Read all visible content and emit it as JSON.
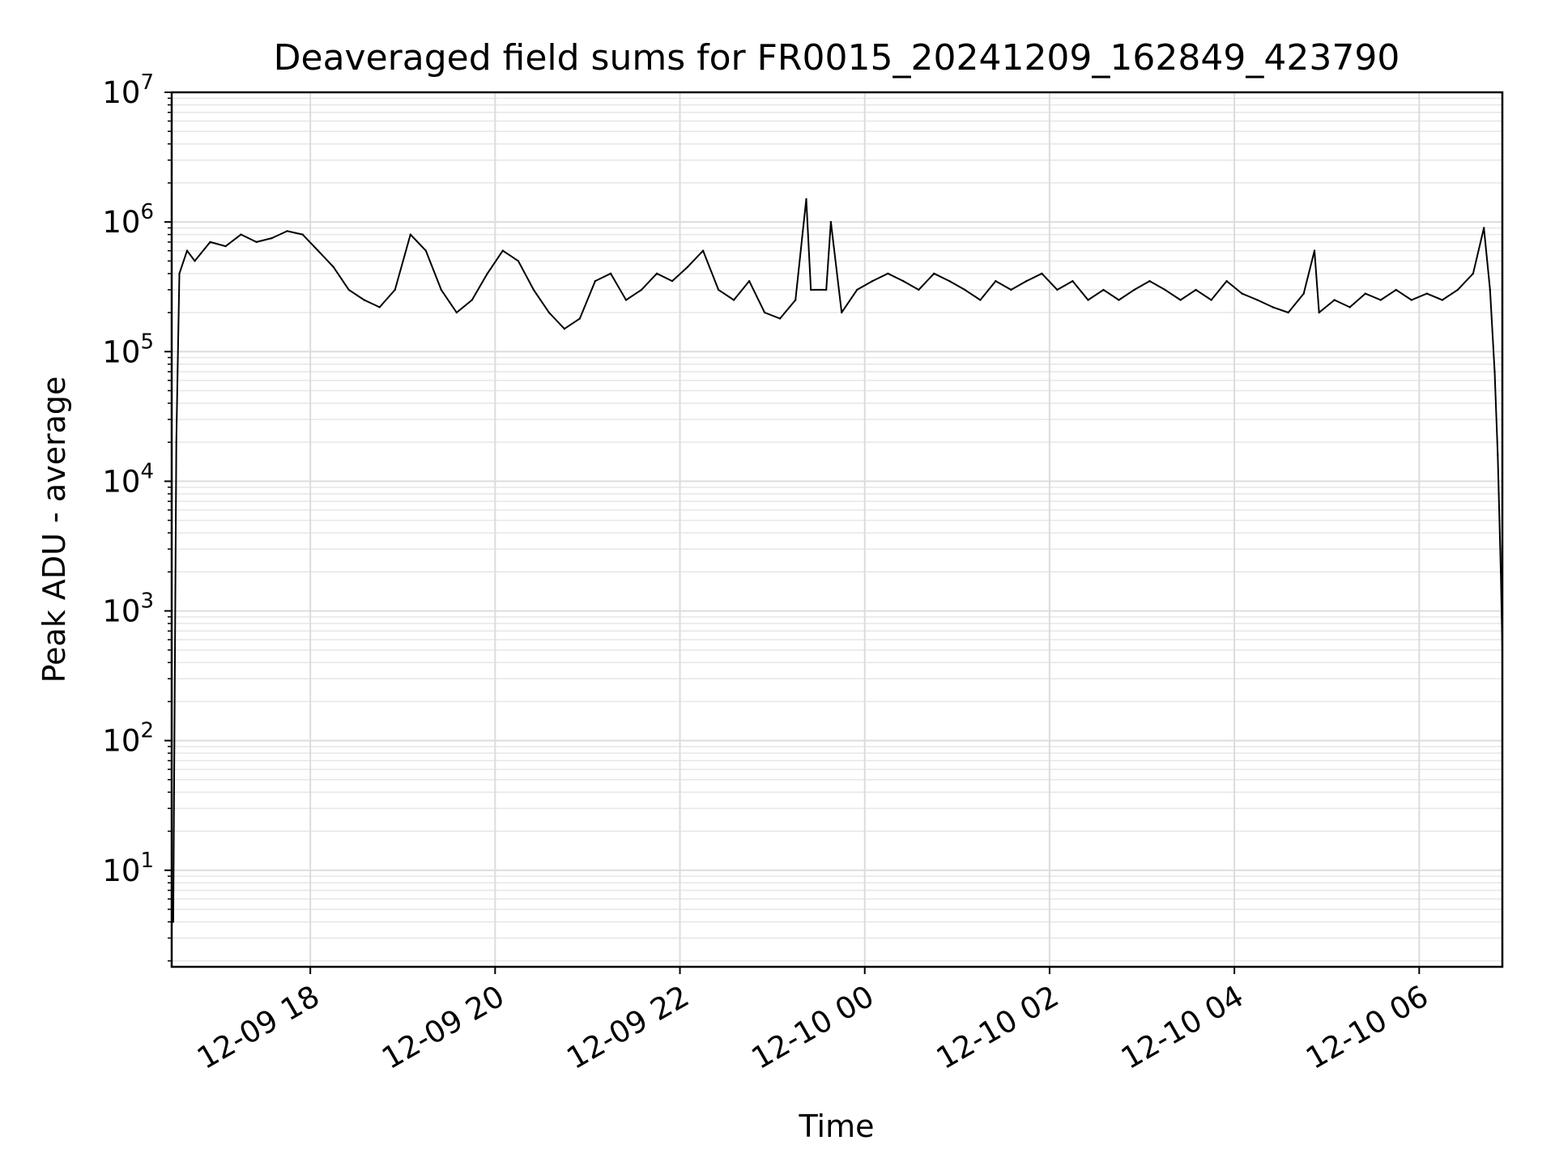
{
  "chart_data": {
    "type": "line",
    "title": "Deaveraged field sums for FR0015_20241209_162849_423790",
    "xlabel": "Time",
    "ylabel": "Peak ADU - average",
    "yscale": "log",
    "ylim": [
      1.8,
      10000000
    ],
    "xlim": [
      "2024-12-09 16:30",
      "2024-12-10 06:54"
    ],
    "grid": true,
    "x_ticks": [
      {
        "value": "2024-12-09 18:00",
        "label": "12-09 18"
      },
      {
        "value": "2024-12-09 20:00",
        "label": "12-09 20"
      },
      {
        "value": "2024-12-09 22:00",
        "label": "12-09 22"
      },
      {
        "value": "2024-12-10 00:00",
        "label": "12-10 00"
      },
      {
        "value": "2024-12-10 02:00",
        "label": "12-10 02"
      },
      {
        "value": "2024-12-10 04:00",
        "label": "12-10 04"
      },
      {
        "value": "2024-12-10 06:00",
        "label": "12-10 06"
      }
    ],
    "y_ticks": [
      {
        "value": 10,
        "base": "10",
        "exp": "1"
      },
      {
        "value": 100,
        "base": "10",
        "exp": "2"
      },
      {
        "value": 1000,
        "base": "10",
        "exp": "3"
      },
      {
        "value": 10000,
        "base": "10",
        "exp": "4"
      },
      {
        "value": 100000,
        "base": "10",
        "exp": "5"
      },
      {
        "value": 1000000,
        "base": "10",
        "exp": "6"
      },
      {
        "value": 10000000,
        "base": "10",
        "exp": "7"
      }
    ],
    "series": [
      {
        "color": "#000000",
        "x": [
          "2024-12-09 16:30",
          "2024-12-09 16:31",
          "2024-12-09 16:33",
          "2024-12-09 16:35",
          "2024-12-09 16:40",
          "2024-12-09 16:45",
          "2024-12-09 16:55",
          "2024-12-09 17:05",
          "2024-12-09 17:15",
          "2024-12-09 17:25",
          "2024-12-09 17:35",
          "2024-12-09 17:45",
          "2024-12-09 17:55",
          "2024-12-09 18:05",
          "2024-12-09 18:15",
          "2024-12-09 18:25",
          "2024-12-09 18:35",
          "2024-12-09 18:45",
          "2024-12-09 18:55",
          "2024-12-09 19:05",
          "2024-12-09 19:15",
          "2024-12-09 19:25",
          "2024-12-09 19:35",
          "2024-12-09 19:45",
          "2024-12-09 19:55",
          "2024-12-09 20:05",
          "2024-12-09 20:15",
          "2024-12-09 20:25",
          "2024-12-09 20:35",
          "2024-12-09 20:45",
          "2024-12-09 20:55",
          "2024-12-09 21:05",
          "2024-12-09 21:15",
          "2024-12-09 21:25",
          "2024-12-09 21:35",
          "2024-12-09 21:45",
          "2024-12-09 21:55",
          "2024-12-09 22:05",
          "2024-12-09 22:15",
          "2024-12-09 22:25",
          "2024-12-09 22:35",
          "2024-12-09 22:45",
          "2024-12-09 22:55",
          "2024-12-09 23:05",
          "2024-12-09 23:15",
          "2024-12-09 23:22",
          "2024-12-09 23:25",
          "2024-12-09 23:35",
          "2024-12-09 23:38",
          "2024-12-09 23:45",
          "2024-12-09 23:55",
          "2024-12-10 00:05",
          "2024-12-10 00:15",
          "2024-12-10 00:25",
          "2024-12-10 00:35",
          "2024-12-10 00:45",
          "2024-12-10 00:55",
          "2024-12-10 01:05",
          "2024-12-10 01:15",
          "2024-12-10 01:25",
          "2024-12-10 01:35",
          "2024-12-10 01:45",
          "2024-12-10 01:55",
          "2024-12-10 02:05",
          "2024-12-10 02:15",
          "2024-12-10 02:25",
          "2024-12-10 02:35",
          "2024-12-10 02:45",
          "2024-12-10 02:55",
          "2024-12-10 03:05",
          "2024-12-10 03:15",
          "2024-12-10 03:25",
          "2024-12-10 03:35",
          "2024-12-10 03:45",
          "2024-12-10 03:55",
          "2024-12-10 04:05",
          "2024-12-10 04:15",
          "2024-12-10 04:25",
          "2024-12-10 04:35",
          "2024-12-10 04:45",
          "2024-12-10 04:52",
          "2024-12-10 04:55",
          "2024-12-10 05:05",
          "2024-12-10 05:15",
          "2024-12-10 05:25",
          "2024-12-10 05:35",
          "2024-12-10 05:45",
          "2024-12-10 05:55",
          "2024-12-10 06:05",
          "2024-12-10 06:15",
          "2024-12-10 06:25",
          "2024-12-10 06:35",
          "2024-12-10 06:42",
          "2024-12-10 06:46",
          "2024-12-10 06:49",
          "2024-12-10 06:51",
          "2024-12-10 06:53",
          "2024-12-10 06:54"
        ],
        "y": [
          4,
          4,
          20000,
          400000,
          600000,
          500000,
          700000,
          650000,
          800000,
          700000,
          750000,
          850000,
          800000,
          600000,
          450000,
          300000,
          250000,
          220000,
          300000,
          800000,
          600000,
          300000,
          200000,
          250000,
          400000,
          600000,
          500000,
          300000,
          200000,
          150000,
          180000,
          350000,
          400000,
          250000,
          300000,
          400000,
          350000,
          450000,
          600000,
          300000,
          250000,
          350000,
          200000,
          180000,
          250000,
          1500000,
          300000,
          300000,
          1000000,
          200000,
          300000,
          350000,
          400000,
          350000,
          300000,
          400000,
          350000,
          300000,
          250000,
          350000,
          300000,
          350000,
          400000,
          300000,
          350000,
          250000,
          300000,
          250000,
          300000,
          350000,
          300000,
          250000,
          300000,
          250000,
          350000,
          280000,
          250000,
          220000,
          200000,
          280000,
          600000,
          200000,
          250000,
          220000,
          280000,
          250000,
          300000,
          250000,
          280000,
          250000,
          300000,
          400000,
          900000,
          300000,
          70000,
          16000,
          2000,
          500
        ]
      }
    ]
  }
}
